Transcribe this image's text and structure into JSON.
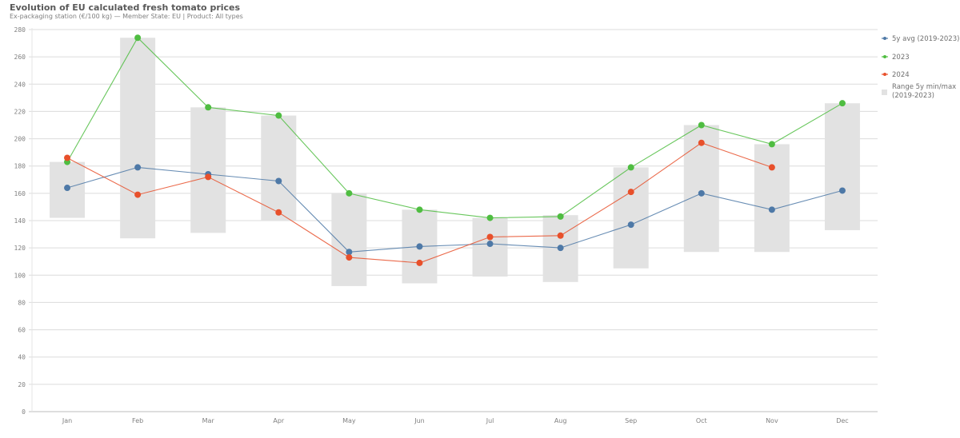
{
  "header": {
    "title": "Evolution of EU calculated fresh tomato prices",
    "subtitle": "Ex-packaging station (€/100 kg) — Member State: EU | Product: All types"
  },
  "legend": [
    {
      "label": "5y avg (2019-2023)",
      "color": "#4e79a7",
      "kind": "line"
    },
    {
      "label": "2023",
      "color": "#4fbd41",
      "kind": "line"
    },
    {
      "label": "2024",
      "color": "#e8502b",
      "kind": "line"
    },
    {
      "label": "Range 5y min/max",
      "label2": "(2019-2023)",
      "color": "#e2e2e2",
      "kind": "box"
    }
  ],
  "chart_data": {
    "type": "line",
    "title": "Evolution of EU calculated fresh tomato prices",
    "subtitle": "Ex-packaging station (€/100 kg) — Member State: EU | Product: All types",
    "xlabel": "",
    "ylabel": "",
    "ylim": [
      0,
      280
    ],
    "yticks": [
      0,
      20,
      40,
      60,
      80,
      100,
      120,
      140,
      160,
      180,
      200,
      220,
      240,
      260,
      280
    ],
    "grid": true,
    "legend_position": "right",
    "categories": [
      "Jan",
      "Feb",
      "Mar",
      "Apr",
      "May",
      "Jun",
      "Jul",
      "Aug",
      "Sep",
      "Oct",
      "Nov",
      "Dec"
    ],
    "range": {
      "name": "Range 5y min/max (2019-2023)",
      "min": [
        142,
        127,
        131,
        140,
        92,
        94,
        99,
        95,
        105,
        117,
        117,
        133
      ],
      "max": [
        183,
        274,
        223,
        217,
        160,
        148,
        142,
        144,
        179,
        210,
        196,
        226
      ]
    },
    "series": [
      {
        "name": "5y avg (2019-2023)",
        "color": "#4e79a7",
        "values": [
          164,
          179,
          174,
          169,
          117,
          121,
          123,
          120,
          137,
          160,
          148,
          162
        ]
      },
      {
        "name": "2023",
        "color": "#4fbd41",
        "values": [
          183,
          274,
          223,
          217,
          160,
          148,
          142,
          143,
          179,
          210,
          196,
          226
        ]
      },
      {
        "name": "2024",
        "color": "#e8502b",
        "values": [
          186,
          159,
          172,
          146,
          113,
          109,
          128,
          129,
          161,
          197,
          179,
          null
        ]
      }
    ]
  }
}
